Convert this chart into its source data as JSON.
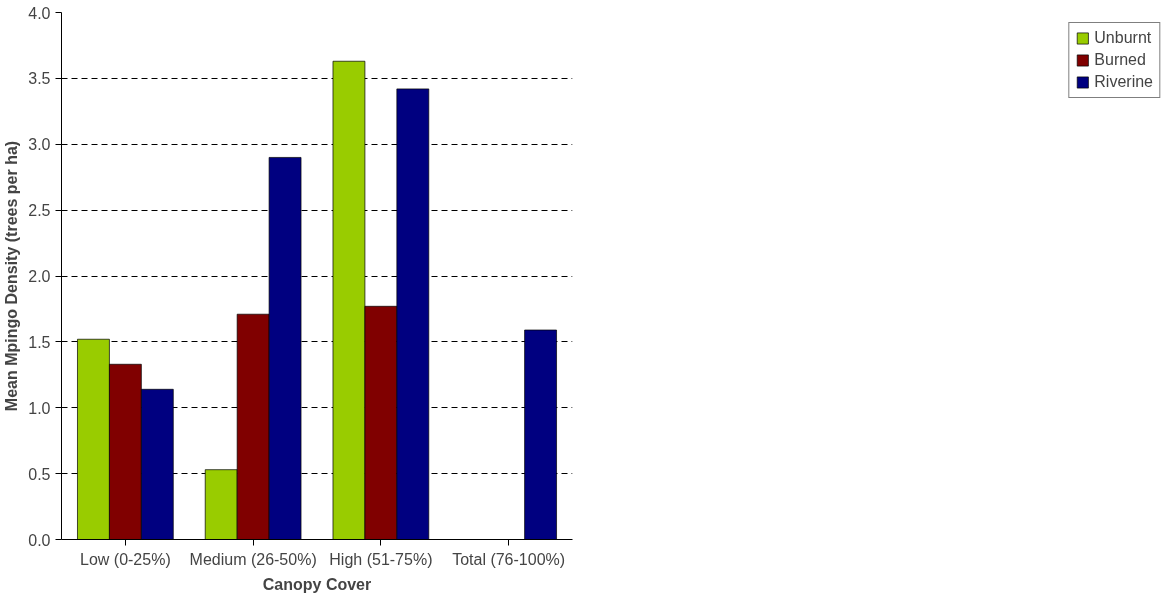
{
  "chart_data": {
    "type": "bar",
    "xlabel": "Canopy Cover",
    "ylabel": "Mean Mpingo Density (trees per ha)",
    "categories": [
      "Low (0-25%)",
      "Medium (26-50%)",
      "High (51-75%)",
      "Total (76-100%)"
    ],
    "series": [
      {
        "name": "Unburnt",
        "color": "#99cc00",
        "values": [
          1.52,
          0.53,
          3.63,
          null
        ]
      },
      {
        "name": "Burned",
        "color": "#800000",
        "values": [
          1.33,
          1.71,
          1.77,
          null
        ]
      },
      {
        "name": "Riverine",
        "color": "#000080",
        "values": [
          1.14,
          2.9,
          3.42,
          1.59
        ]
      }
    ],
    "ylim": [
      0,
      4
    ],
    "yticks": [
      {
        "value": 0,
        "label": "0.0"
      },
      {
        "value": 0.5,
        "label": "0.5"
      },
      {
        "value": 1,
        "label": "1.0"
      },
      {
        "value": 1.5,
        "label": "1.5"
      },
      {
        "value": 2,
        "label": "2.0"
      },
      {
        "value": 2.5,
        "label": "2.5"
      },
      {
        "value": 3,
        "label": "3.0"
      },
      {
        "value": 3.5,
        "label": "3.5"
      },
      {
        "value": 4,
        "label": "4.0"
      }
    ],
    "grid": "y",
    "legend": "right",
    "line_style": "dashed"
  }
}
